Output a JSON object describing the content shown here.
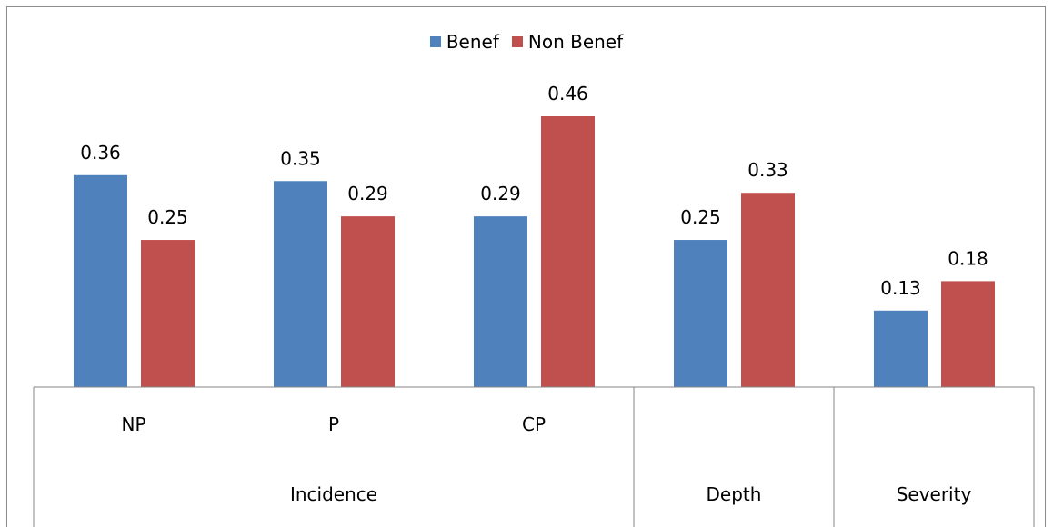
{
  "chart_data": {
    "type": "bar",
    "groups": [
      {
        "label": "Incidence",
        "categories": [
          "NP",
          "P",
          "CP"
        ]
      },
      {
        "label": "Depth",
        "categories": [
          ""
        ]
      },
      {
        "label": "Severity",
        "categories": [
          ""
        ]
      }
    ],
    "categories": [
      "NP",
      "P",
      "CP",
      "Depth",
      "Severity"
    ],
    "series": [
      {
        "name": "Benef",
        "color": "#4f81bd",
        "values": [
          0.36,
          0.35,
          0.29,
          0.25,
          0.13
        ],
        "labels": [
          "0.36",
          "0.35",
          "0.29",
          "0.25",
          "0.13"
        ]
      },
      {
        "name": "Non Benef",
        "color": "#c0504d",
        "values": [
          0.25,
          0.29,
          0.46,
          0.33,
          0.18
        ],
        "labels": [
          "0.25",
          "0.29",
          "0.46",
          "0.33",
          "0.18"
        ]
      }
    ],
    "ylim": [
      0,
      0.46
    ],
    "grid": false,
    "legend_position": "top-center"
  }
}
